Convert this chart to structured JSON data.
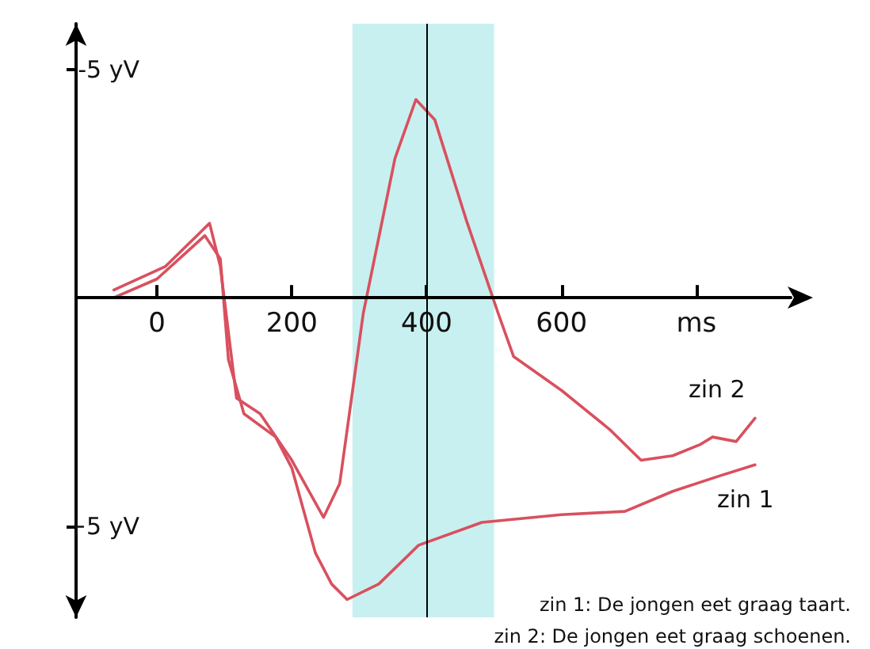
{
  "chart_data": {
    "type": "line",
    "series": [
      {
        "name": "zin 2",
        "color": "#d9505e",
        "x": [
          -64,
          12,
          78,
          94,
          118,
          153,
          200,
          247,
          271,
          306,
          353,
          384,
          412,
          459,
          506,
          529,
          600,
          671,
          718,
          765,
          805,
          824,
          859,
          887
        ],
        "values": [
          -0.17,
          -0.68,
          -1.63,
          -0.68,
          2.2,
          2.54,
          3.56,
          4.81,
          4.07,
          0.34,
          -3.05,
          -4.34,
          -3.9,
          -1.69,
          0.34,
          1.29,
          2.03,
          2.88,
          3.56,
          3.46,
          3.22,
          3.05,
          3.15,
          2.64
        ]
      },
      {
        "name": "zin 1",
        "color": "#d9505e",
        "x": [
          -64,
          0,
          71,
          94,
          106,
          129,
          176,
          200,
          235,
          259,
          282,
          329,
          388,
          482,
          600,
          694,
          765,
          835,
          887
        ],
        "values": [
          0,
          -0.41,
          -1.36,
          -0.85,
          1.36,
          2.54,
          3.05,
          3.73,
          5.59,
          6.27,
          6.61,
          6.27,
          5.42,
          4.92,
          4.75,
          4.68,
          4.24,
          3.9,
          3.66
        ]
      }
    ],
    "xlim": [
      -120,
      940
    ],
    "xticks": [
      0,
      200,
      {
        "value": 400,
        "label": "400"
      },
      600,
      {
        "value": 800,
        "label": "ms"
      }
    ],
    "ylim": [
      7,
      -6
    ],
    "yticks": [
      {
        "value": -5,
        "label": "-5 yV"
      },
      {
        "value": 5,
        "label": "+5 yV"
      }
    ],
    "bands": [
      {
        "axis": "x",
        "from": 290,
        "to": 500,
        "color": "#c8f0f0"
      }
    ],
    "ref_lines": [
      {
        "axis": "x",
        "value": 400,
        "color": "#000000"
      }
    ],
    "annotations": [
      "zin 1: De jongen eet graag taart.",
      "zin 2: De jongen eet graag schoenen."
    ],
    "grid": false,
    "legend": false,
    "marker": "none",
    "line_style": "solid"
  }
}
